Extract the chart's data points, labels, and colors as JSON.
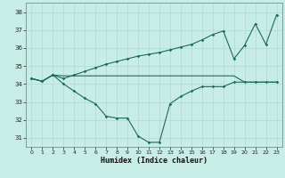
{
  "xlabel": "Humidex (Indice chaleur)",
  "background_color": "#c8ece6",
  "line_color": "#1a6b5e",
  "xlim": [
    -0.5,
    23.5
  ],
  "ylim": [
    30.5,
    38.5
  ],
  "yticks": [
    31,
    32,
    33,
    34,
    35,
    36,
    37,
    38
  ],
  "xticks": [
    0,
    1,
    2,
    3,
    4,
    5,
    6,
    7,
    8,
    9,
    10,
    11,
    12,
    13,
    14,
    15,
    16,
    17,
    18,
    19,
    20,
    21,
    22,
    23
  ],
  "line1_x": [
    0,
    1,
    2,
    3,
    4,
    5,
    6,
    7,
    8,
    9,
    10,
    11,
    12,
    13,
    14,
    15,
    16,
    17,
    18,
    19,
    20,
    21,
    22,
    23
  ],
  "line1_y": [
    34.3,
    34.15,
    34.5,
    34.45,
    34.45,
    34.45,
    34.45,
    34.45,
    34.45,
    34.45,
    34.45,
    34.45,
    34.45,
    34.45,
    34.45,
    34.45,
    34.45,
    34.45,
    34.45,
    34.45,
    34.1,
    34.1,
    34.1,
    34.1
  ],
  "line2_x": [
    0,
    1,
    2,
    3,
    4,
    5,
    6,
    7,
    8,
    9,
    10,
    11,
    12,
    13,
    14,
    15,
    16,
    17,
    18,
    19,
    20,
    21,
    22,
    23
  ],
  "line2_y": [
    34.3,
    34.15,
    34.5,
    34.0,
    33.6,
    33.2,
    32.9,
    32.2,
    32.1,
    32.1,
    31.1,
    30.75,
    30.75,
    32.9,
    33.3,
    33.6,
    33.85,
    33.85,
    33.85,
    34.1,
    34.1,
    34.1,
    34.1,
    34.1
  ],
  "line3_x": [
    0,
    1,
    2,
    3,
    4,
    5,
    6,
    7,
    8,
    9,
    10,
    11,
    12,
    13,
    14,
    15,
    16,
    17,
    18,
    19,
    20,
    21,
    22,
    23
  ],
  "line3_y": [
    34.3,
    34.15,
    34.5,
    34.3,
    34.5,
    34.7,
    34.9,
    35.1,
    35.25,
    35.4,
    35.55,
    35.65,
    35.75,
    35.9,
    36.05,
    36.2,
    36.45,
    36.75,
    36.95,
    35.4,
    36.15,
    37.35,
    36.2,
    37.85
  ]
}
